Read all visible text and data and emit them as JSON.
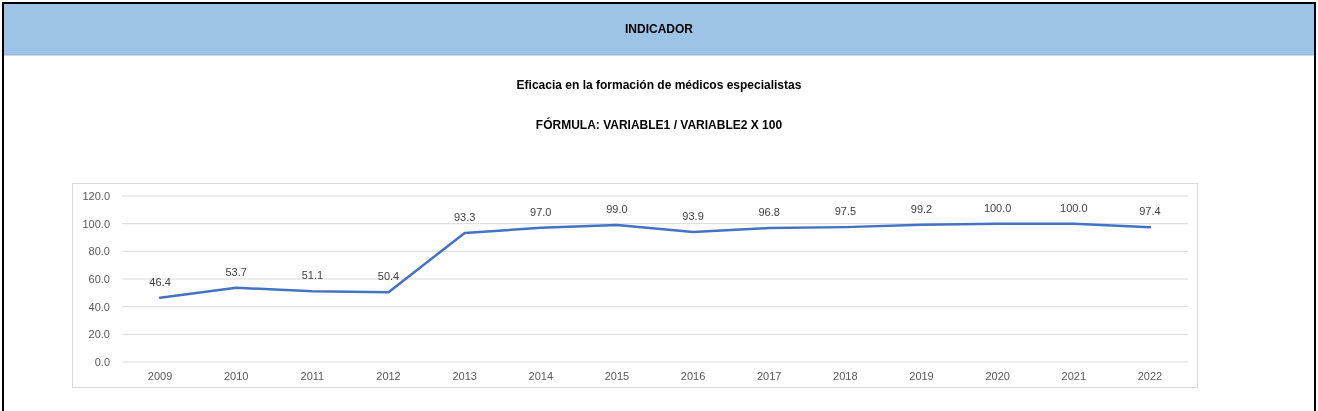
{
  "chart_data": {
    "type": "line",
    "title": "Eficacia en la formación de médicos especialistas",
    "subtitle": "FÓRMULA: VARIABLE1 / VARIABLE2 X 100",
    "annotations": [
      "INDICADOR"
    ],
    "categories": [
      "2009",
      "2010",
      "2011",
      "2012",
      "2013",
      "2014",
      "2015",
      "2016",
      "2017",
      "2018",
      "2019",
      "2020",
      "2021",
      "2022"
    ],
    "series": [
      {
        "color": "#4472c4",
        "values": [
          46.4,
          53.7,
          51.1,
          50.4,
          93.3,
          97.0,
          99.0,
          93.9,
          96.8,
          97.5,
          99.2,
          100.0,
          100.0,
          97.4
        ],
        "value_labels": [
          "46.4",
          "53.7",
          "51.1",
          "50.4",
          "93.3",
          "97.0",
          "99.0",
          "93.9",
          "96.8",
          "97.5",
          "99.2",
          "100.0",
          "100.0",
          "97.4"
        ]
      }
    ],
    "ylim": [
      0,
      120
    ],
    "yticks": [
      {
        "value": 0,
        "label": "0.0"
      },
      {
        "value": 20,
        "label": "20.0"
      },
      {
        "value": 40,
        "label": "40.0"
      },
      {
        "value": 60,
        "label": "60.0"
      },
      {
        "value": 80,
        "label": "80.0"
      },
      {
        "value": 100,
        "label": "100.0"
      },
      {
        "value": 120,
        "label": "120.0"
      }
    ],
    "grid": "y",
    "marker": "none",
    "line_style": "solid"
  }
}
